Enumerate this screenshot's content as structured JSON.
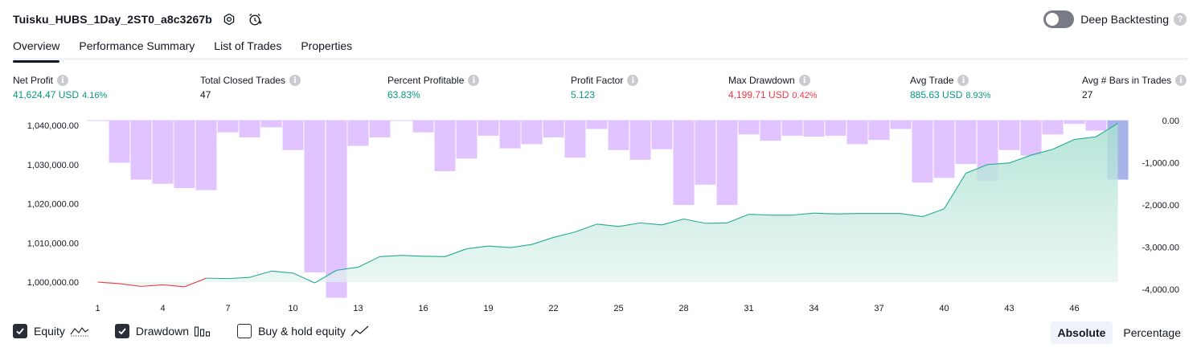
{
  "header": {
    "title": "Tuisku_HUBS_1Day_2ST0_a8c3267b",
    "icons": [
      "settings-icon",
      "alarm-add-icon"
    ]
  },
  "deep_backtesting": {
    "label": "Deep Backtesting",
    "enabled": false
  },
  "tabs": [
    {
      "label": "Overview",
      "active": true
    },
    {
      "label": "Performance Summary",
      "active": false
    },
    {
      "label": "List of Trades",
      "active": false
    },
    {
      "label": "Properties",
      "active": false
    }
  ],
  "metrics": {
    "net_profit": {
      "label": "Net Profit",
      "value": "41,624.47 USD",
      "sub": "4.16%"
    },
    "total_closed_trades": {
      "label": "Total Closed Trades",
      "value": "47"
    },
    "percent_profitable": {
      "label": "Percent Profitable",
      "value": "63.83%"
    },
    "profit_factor": {
      "label": "Profit Factor",
      "value": "5.123"
    },
    "max_drawdown": {
      "label": "Max Drawdown",
      "value": "4,199.71 USD",
      "sub": "0.42%"
    },
    "avg_trade": {
      "label": "Avg Trade",
      "value": "885.63 USD",
      "sub": "8.93%"
    },
    "avg_bars": {
      "label": "Avg # Bars in Trades",
      "value": "27"
    }
  },
  "legend": {
    "equity": {
      "label": "Equity",
      "checked": true
    },
    "drawdown": {
      "label": "Drawdown",
      "checked": true
    },
    "buy_hold": {
      "label": "Buy & hold equity",
      "checked": false
    }
  },
  "mode": {
    "absolute": "Absolute",
    "percentage": "Percentage",
    "active": "Absolute"
  },
  "colors": {
    "equity_up": "#22ab94",
    "equity_down": "#f23645",
    "equity_fill": "#d6efe8",
    "drawdown_bar": "#e1c4ff",
    "drawdown_bar_highlight": "#a7b4ea"
  },
  "chart_data": {
    "type": "line",
    "x": [
      1,
      2,
      3,
      4,
      5,
      6,
      7,
      8,
      9,
      10,
      11,
      12,
      13,
      14,
      15,
      16,
      17,
      18,
      19,
      20,
      21,
      22,
      23,
      24,
      25,
      26,
      27,
      28,
      29,
      30,
      31,
      32,
      33,
      34,
      35,
      36,
      37,
      38,
      39,
      40,
      41,
      42,
      43,
      44,
      45,
      46,
      47,
      48
    ],
    "x_ticks": [
      "1",
      "4",
      "7",
      "10",
      "13",
      "16",
      "19",
      "22",
      "25",
      "28",
      "31",
      "34",
      "37",
      "40",
      "43",
      "46"
    ],
    "series": [
      {
        "name": "Equity",
        "axis": "left",
        "values": [
          1000000,
          999600,
          998900,
          999300,
          998800,
          1001000,
          1000900,
          1001200,
          1002800,
          1002300,
          999800,
          1003000,
          1003800,
          1006500,
          1006800,
          1006600,
          1006500,
          1008500,
          1009200,
          1008800,
          1009600,
          1011400,
          1012800,
          1014800,
          1014200,
          1015100,
          1014600,
          1016100,
          1015000,
          1015100,
          1017300,
          1017100,
          1017100,
          1017600,
          1017400,
          1017500,
          1017500,
          1017500,
          1016700,
          1018700,
          1027800,
          1030000,
          1030400,
          1032400,
          1033900,
          1036400,
          1037100,
          1040500
        ]
      },
      {
        "name": "Drawdown",
        "axis": "right",
        "type": "bar",
        "values": [
          0,
          -1000,
          -1400,
          -1500,
          -1600,
          -1650,
          -280,
          -400,
          -160,
          -700,
          -3600,
          -4200,
          -600,
          -400,
          0,
          -280,
          -1200,
          -900,
          -360,
          -660,
          -560,
          -400,
          -880,
          -200,
          -700,
          -930,
          -680,
          -2000,
          -1520,
          -2000,
          -330,
          -480,
          -360,
          -380,
          -360,
          -560,
          -460,
          -200,
          -1470,
          -1360,
          -1030,
          -1430,
          -700,
          -830,
          -330,
          -80,
          -240,
          -1400
        ]
      }
    ],
    "y_left": {
      "ticks": [
        "1,000,000.00",
        "1,010,000.00",
        "1,020,000.00",
        "1,030,000.00",
        "1,040,000.00"
      ],
      "range": [
        1000000,
        1040000
      ]
    },
    "y_right": {
      "ticks": [
        "0.00",
        "-1,000.00",
        "-2,000.00",
        "-3,000.00",
        "-4,000.00"
      ],
      "range": [
        -4000,
        0
      ]
    }
  }
}
